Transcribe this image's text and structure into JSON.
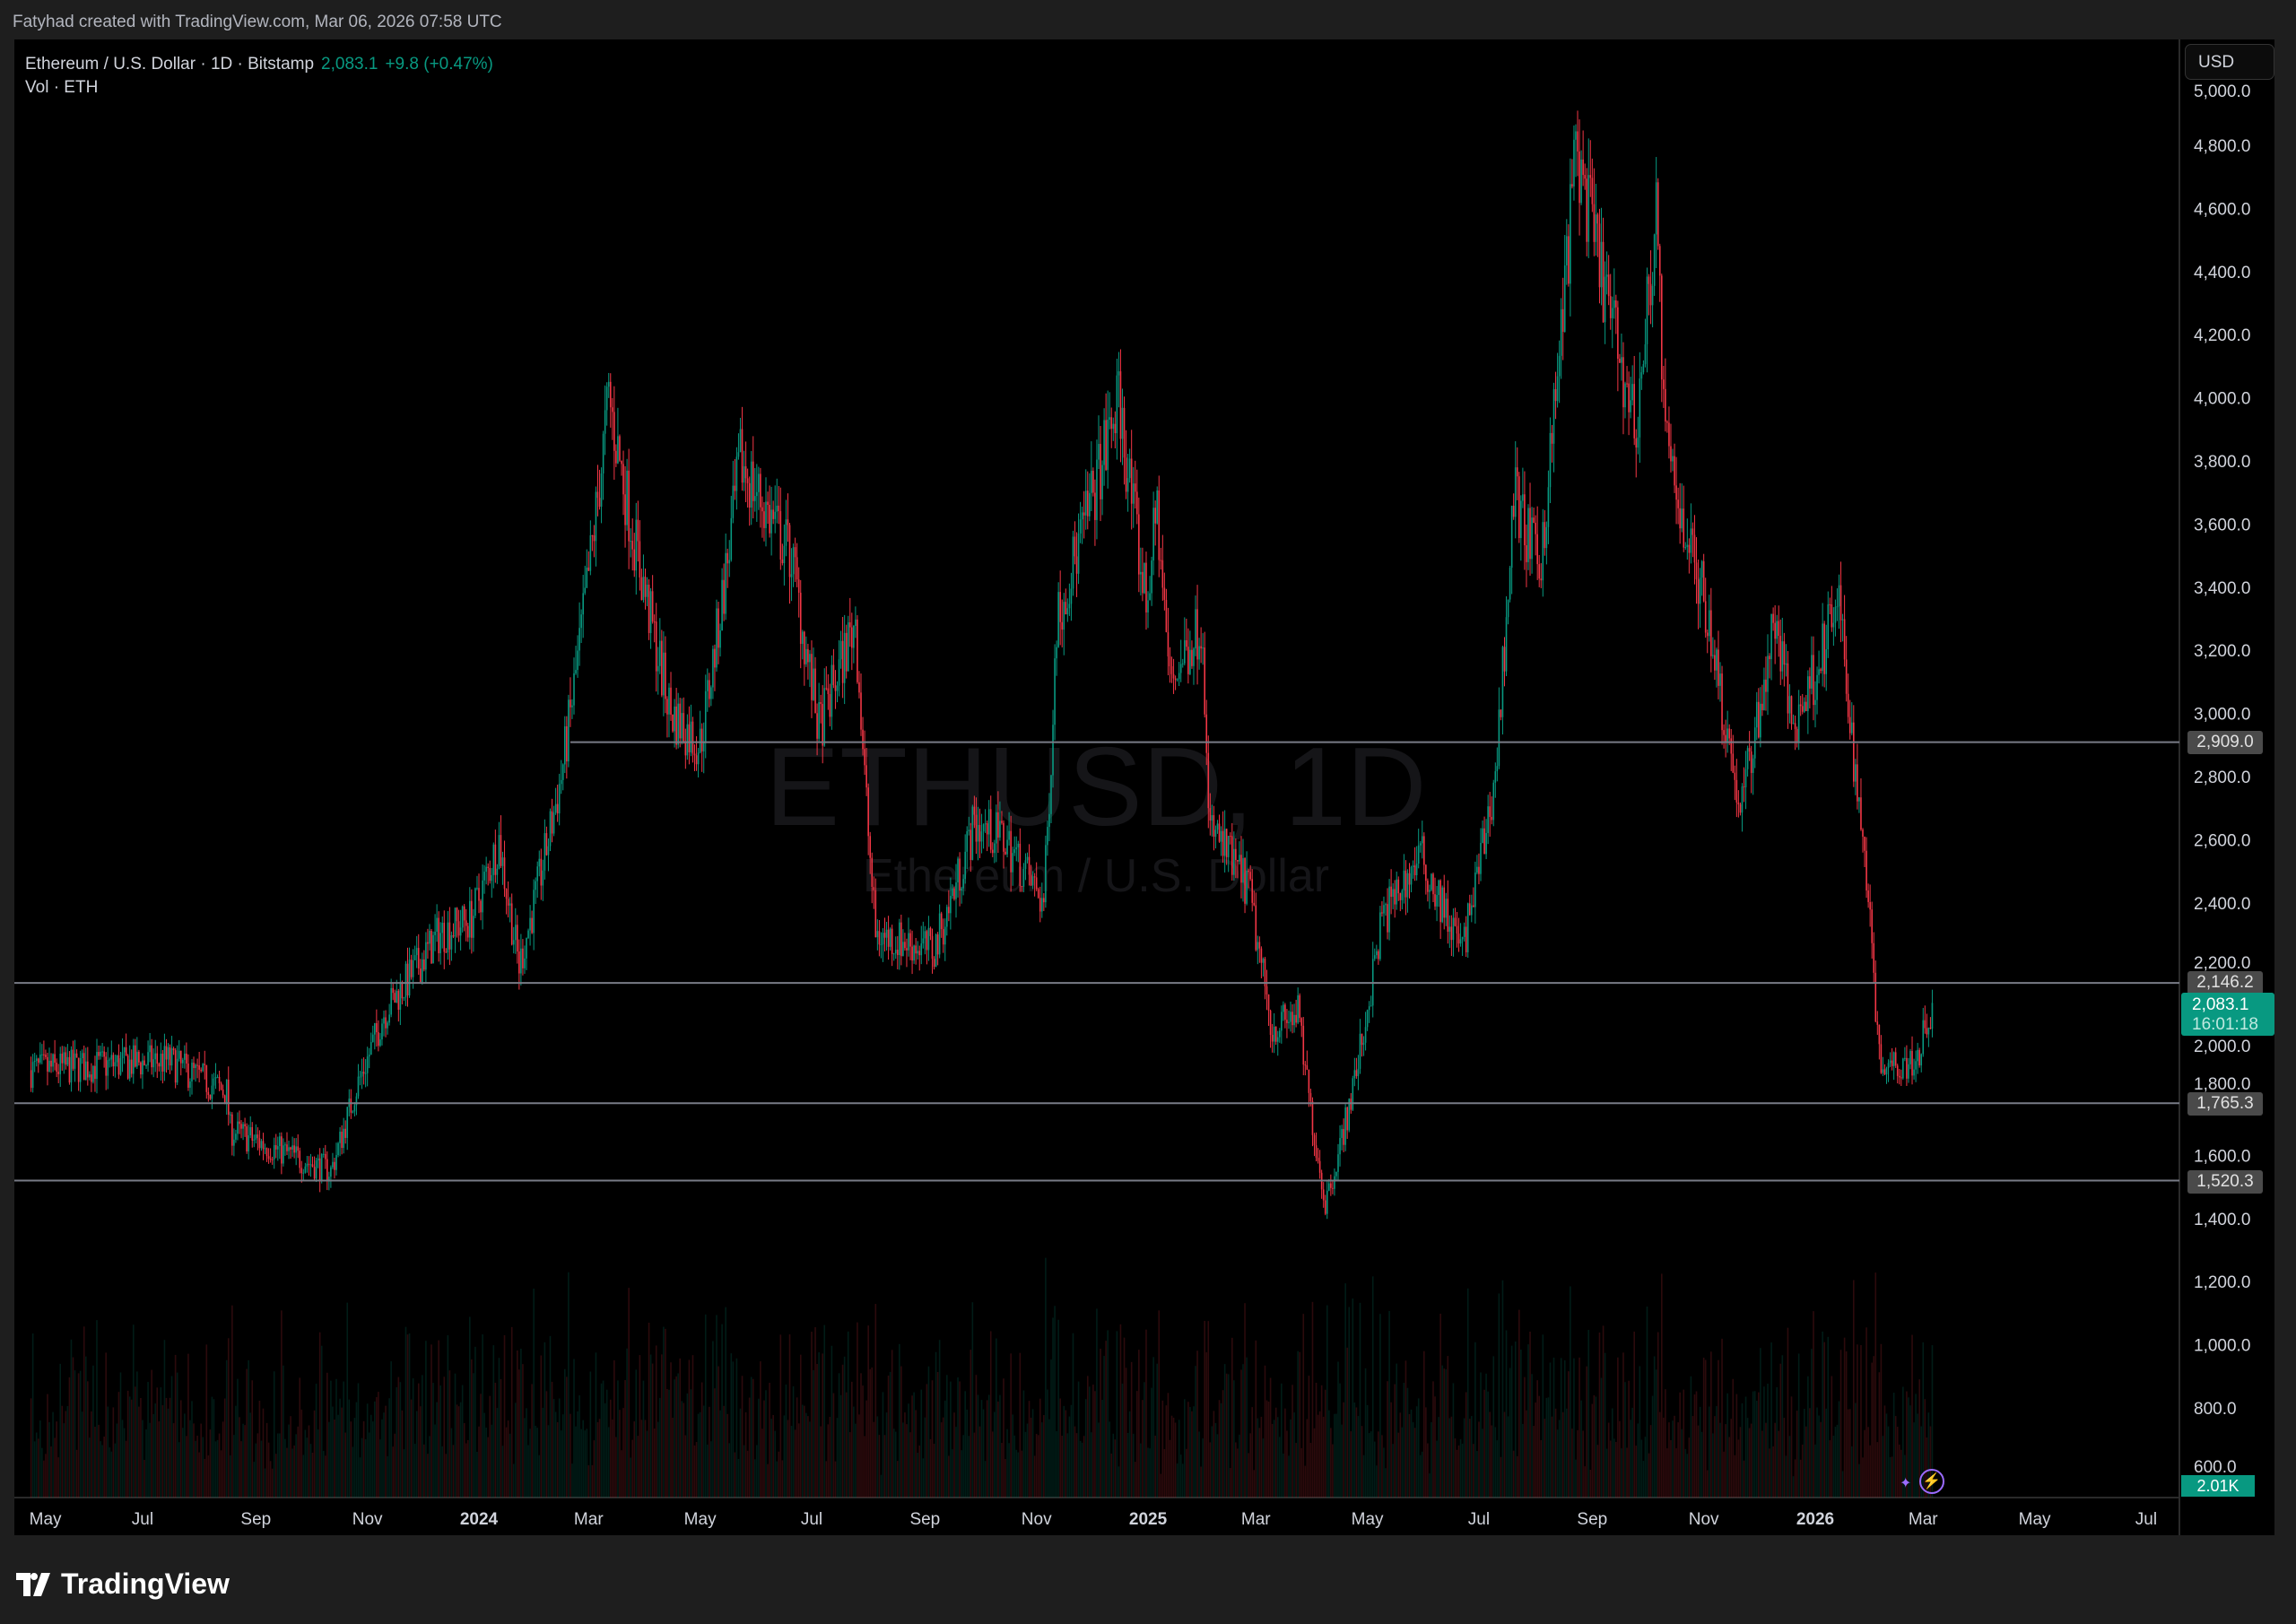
{
  "header": {
    "credit": "Fatyhad created with TradingView.com, Mar 06, 2026 07:58 UTC"
  },
  "legend": {
    "symbol": "Ethereum / U.S. Dollar · 1D · Bitstamp",
    "last": "2,083.1",
    "change": "+9.8 (+0.47%)",
    "volume": "Vol · ETH"
  },
  "watermark": {
    "ticker": "ETHUSD, 1D",
    "name": "Ethereum / U.S. Dollar"
  },
  "currency_button": "USD",
  "current_price": {
    "price": "2,083.1",
    "countdown": "16:01:18"
  },
  "volume_label": "2.01K",
  "footer": {
    "brand": "TradingView"
  },
  "colors": {
    "up": "#089981",
    "down": "#f23645",
    "background": "#000000",
    "level_line": "#787b86"
  },
  "chart_data": {
    "type": "candlestick",
    "interval": "1D",
    "grid": false,
    "y_ticks": [
      "600.0",
      "800.0",
      "1,000.0",
      "1,200.0",
      "1,400.0",
      "1,600.0",
      "1,800.0",
      "2,000.0",
      "2,200.0",
      "2,400.0",
      "2,600.0",
      "2,800.0",
      "3,000.0",
      "3,200.0",
      "3,400.0",
      "3,600.0",
      "3,800.0",
      "4,000.0",
      "4,200.0",
      "4,400.0",
      "4,600.0",
      "4,800.0",
      "5,000.0"
    ],
    "ylim": [
      600,
      5000
    ],
    "x_ticks": [
      {
        "label": "May",
        "date": "2023-05-01"
      },
      {
        "label": "Jul",
        "date": "2023-07-01"
      },
      {
        "label": "Sep",
        "date": "2023-09-01"
      },
      {
        "label": "Nov",
        "date": "2023-11-01"
      },
      {
        "label": "2024",
        "date": "2024-01-01",
        "bold": true
      },
      {
        "label": "Mar",
        "date": "2024-03-01"
      },
      {
        "label": "May",
        "date": "2024-05-01"
      },
      {
        "label": "Jul",
        "date": "2024-07-01"
      },
      {
        "label": "Sep",
        "date": "2024-09-01"
      },
      {
        "label": "Nov",
        "date": "2024-11-01"
      },
      {
        "label": "2025",
        "date": "2025-01-01",
        "bold": true
      },
      {
        "label": "Mar",
        "date": "2025-03-01"
      },
      {
        "label": "May",
        "date": "2025-05-01"
      },
      {
        "label": "Jul",
        "date": "2025-07-01"
      },
      {
        "label": "Sep",
        "date": "2025-09-01"
      },
      {
        "label": "Nov",
        "date": "2025-11-01"
      },
      {
        "label": "2026",
        "date": "2026-01-01",
        "bold": true
      },
      {
        "label": "Mar",
        "date": "2026-03-01"
      },
      {
        "label": "May",
        "date": "2026-05-01"
      },
      {
        "label": "Jul",
        "date": "2026-07-01"
      }
    ],
    "horizontal_levels": [
      {
        "price": 2909.0,
        "label": "2,909.0",
        "from": "2024-02-20"
      },
      {
        "price": 2146.2,
        "label": "2,146.2"
      },
      {
        "price": 1765.3,
        "label": "1,765.3"
      },
      {
        "price": 1520.3,
        "label": "1,520.3"
      }
    ],
    "approx_close_path": [
      [
        "2023-05-01",
        1870
      ],
      [
        "2023-07-15",
        1900
      ],
      [
        "2023-08-16",
        1800
      ],
      [
        "2023-08-18",
        1680
      ],
      [
        "2023-10-12",
        1550
      ],
      [
        "2023-10-25",
        1800
      ],
      [
        "2023-11-10",
        2050
      ],
      [
        "2023-12-10",
        2300
      ],
      [
        "2023-12-28",
        2350
      ],
      [
        "2024-01-12",
        2600
      ],
      [
        "2024-01-23",
        2200
      ],
      [
        "2024-02-15",
        2800
      ],
      [
        "2024-03-12",
        4000
      ],
      [
        "2024-04-15",
        3000
      ],
      [
        "2024-05-01",
        2900
      ],
      [
        "2024-05-23",
        3800
      ],
      [
        "2024-06-20",
        3500
      ],
      [
        "2024-07-05",
        2950
      ],
      [
        "2024-07-25",
        3300
      ],
      [
        "2024-08-05",
        2300
      ],
      [
        "2024-09-06",
        2250
      ],
      [
        "2024-09-28",
        2650
      ],
      [
        "2024-10-15",
        2600
      ],
      [
        "2024-11-05",
        2400
      ],
      [
        "2024-11-12",
        3300
      ],
      [
        "2024-12-16",
        4000
      ],
      [
        "2024-12-31",
        3350
      ],
      [
        "2025-01-06",
        3650
      ],
      [
        "2025-01-13",
        3100
      ],
      [
        "2025-01-31",
        3300
      ],
      [
        "2025-02-03",
        2650
      ],
      [
        "2025-02-25",
        2450
      ],
      [
        "2025-03-10",
        2000
      ],
      [
        "2025-03-24",
        2050
      ],
      [
        "2025-04-08",
        1450
      ],
      [
        "2025-04-22",
        1780
      ],
      [
        "2025-05-09",
        2350
      ],
      [
        "2025-05-30",
        2550
      ],
      [
        "2025-06-22",
        2250
      ],
      [
        "2025-07-10",
        2800
      ],
      [
        "2025-07-20",
        3700
      ],
      [
        "2025-08-03",
        3450
      ],
      [
        "2025-08-23",
        4800
      ],
      [
        "2025-09-25",
        3900
      ],
      [
        "2025-10-06",
        4600
      ],
      [
        "2025-10-11",
        3850
      ],
      [
        "2025-11-04",
        3300
      ],
      [
        "2025-11-21",
        2700
      ],
      [
        "2025-12-10",
        3300
      ],
      [
        "2025-12-20",
        2950
      ],
      [
        "2026-01-14",
        3350
      ],
      [
        "2026-01-31",
        2400
      ],
      [
        "2026-02-05",
        1900
      ],
      [
        "2026-02-25",
        1900
      ],
      [
        "2026-03-06",
        2083.1
      ]
    ]
  }
}
